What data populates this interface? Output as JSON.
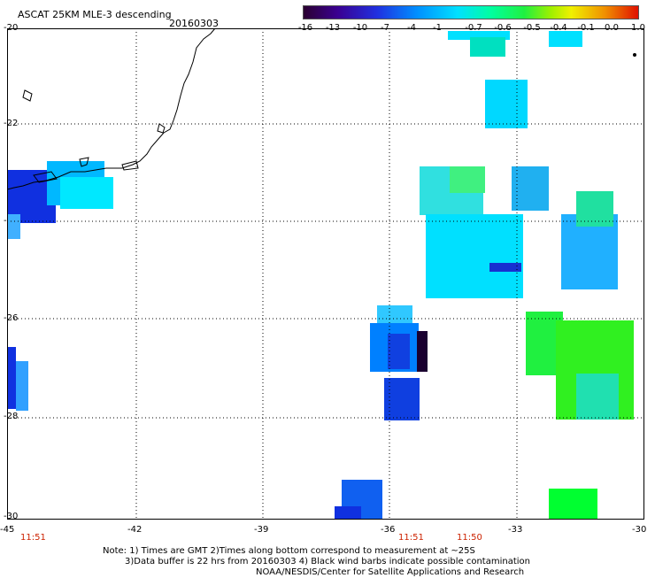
{
  "header": {
    "title": "ASCAT 25KM MLE-3 descending",
    "date": "20160303"
  },
  "colorbar": {
    "labels": [
      "-16",
      "-13",
      "-10",
      "-7",
      "-4",
      "-1",
      "-0.7",
      "-0.6",
      "-0.5",
      "-0.4",
      "-0.1",
      "0.0",
      "1.0"
    ],
    "colors": [
      "#2a0030",
      "#3a0090",
      "#2030e0",
      "#0090ff",
      "#00e0ff",
      "#00ffa0",
      "#20f040",
      "#a0f000",
      "#f0f000",
      "#f09000",
      "#e01000"
    ]
  },
  "axes": {
    "y_ticks": [
      "-20",
      "-22",
      "-24",
      "-26",
      "-28",
      "-30"
    ],
    "x_ticks": [
      "-45",
      "-42",
      "-39",
      "-36",
      "-33",
      "-30"
    ],
    "time_labels": [
      "11:51",
      "11:51",
      "11:50"
    ]
  },
  "map": {
    "lon_range": [
      -45,
      -30
    ],
    "lat_range": [
      -30,
      -20
    ],
    "gridlines": "dotted",
    "swath_cells": [
      {
        "lon": -43.9,
        "lat": -23.6,
        "value": -10
      },
      {
        "lon": -43.4,
        "lat": -23.4,
        "value": -7
      },
      {
        "lon": -43.1,
        "lat": -23.5,
        "value": -4
      },
      {
        "lon": -42.6,
        "lat": -23.5,
        "value": -1
      },
      {
        "lon": -44.8,
        "lat": -24.1,
        "value": -4
      },
      {
        "lon": -36.1,
        "lat": -26.5,
        "value": -7
      },
      {
        "lon": -35.6,
        "lat": -26.6,
        "value": -16
      },
      {
        "lon": -35.9,
        "lat": -27.7,
        "value": -10
      },
      {
        "lon": -34.6,
        "lat": -24.5,
        "value": -1
      },
      {
        "lon": -34.0,
        "lat": -23.4,
        "value": -0.7
      },
      {
        "lon": -32.3,
        "lat": -23.3,
        "value": -4
      },
      {
        "lon": -31.2,
        "lat": -23.6,
        "value": -0.6
      },
      {
        "lon": -30.8,
        "lat": -26.4,
        "value": -0.5
      },
      {
        "lon": -31.7,
        "lat": -29.7,
        "value": -0.5
      },
      {
        "lon": -37.1,
        "lat": -29.4,
        "value": -7
      },
      {
        "lon": -44.8,
        "lat": -27.2,
        "value": -10
      }
    ]
  },
  "note": {
    "line1": "Note: 1) Times are GMT 2)Times along bottom correspond to measurement at ~25S",
    "line2": "3)Data buffer is 22 hrs from 20160303 4) Black wind barbs indicate possible contamination",
    "line3": "NOAA/NESDIS/Center for Satellite Applications and Research"
  }
}
